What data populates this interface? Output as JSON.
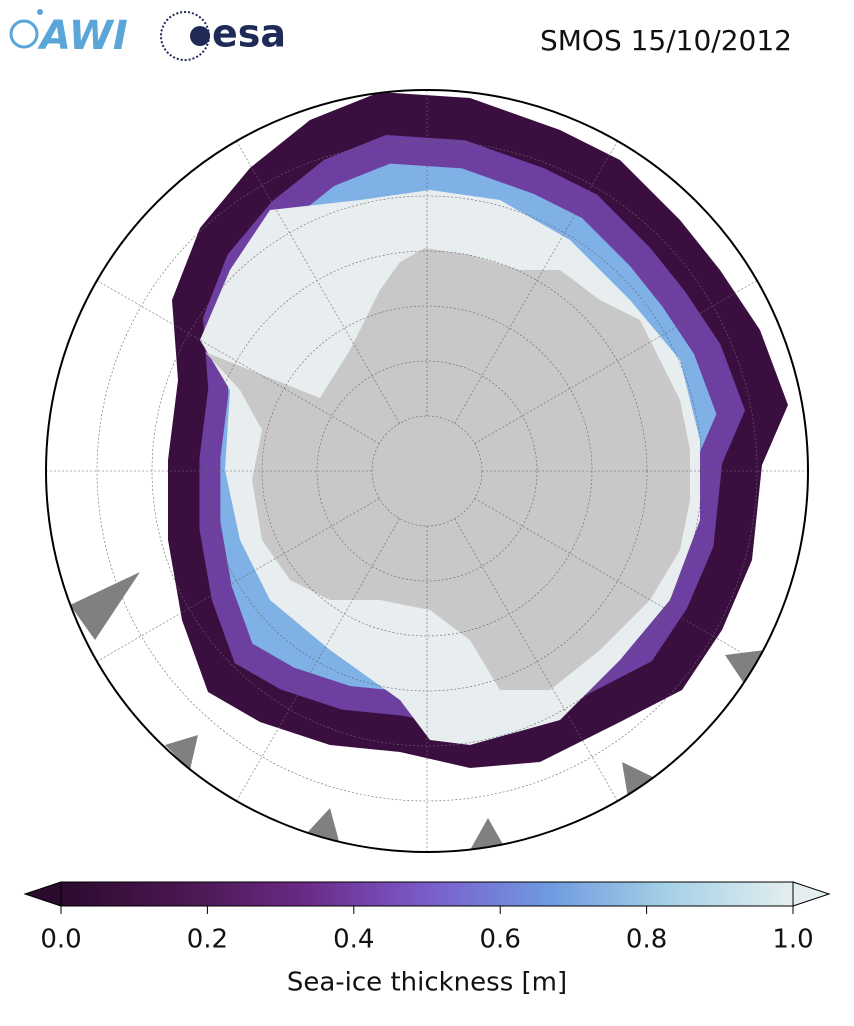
{
  "header": {
    "logos": [
      "AWI",
      "esa"
    ],
    "title": "SMOS 15/10/2012"
  },
  "colorbar": {
    "label": "Sea-ice thickness [m]",
    "lim": [
      0,
      1
    ],
    "ticks": [
      {
        "value": 0,
        "label": "0.0"
      },
      0.2,
      0.4,
      0.6,
      0.8,
      {
        "value": 1,
        "label": "1.0"
      }
    ],
    "colors": [
      "#2b0b2e",
      "#4a1650",
      "#6a2a86",
      "#7b5ccb",
      "#6f9ae0",
      "#a6d2e6",
      "#e4eeee"
    ]
  }
}
